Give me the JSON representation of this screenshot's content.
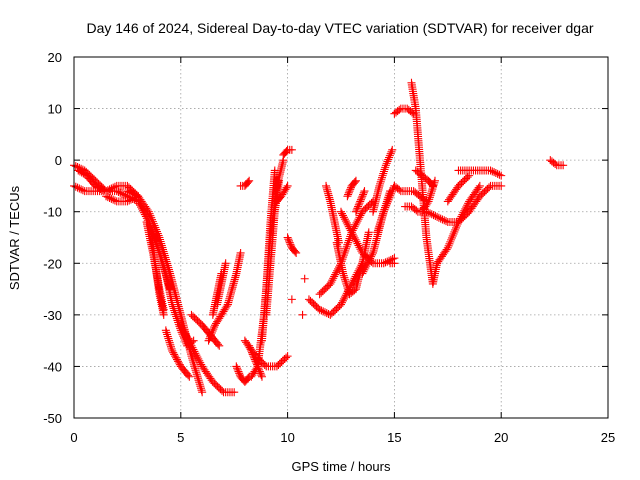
{
  "chart_data": {
    "type": "scatter",
    "title": "Day 146 of 2024, Sidereal Day-to-day VTEC variation (SDTVAR) for receiver dgar",
    "xlabel": "GPS time / hours",
    "ylabel": "SDTVAR / TECUs",
    "xlim": [
      0,
      25
    ],
    "ylim": [
      -50,
      20
    ],
    "xticks": [
      0,
      5,
      10,
      15,
      20,
      25
    ],
    "yticks": [
      -50,
      -40,
      -30,
      -20,
      -10,
      0,
      10,
      20
    ],
    "grid": true,
    "marker": "+",
    "color": "#ff0000",
    "series": [
      {
        "x": [
          0.0,
          0.5,
          1.0,
          1.5,
          2.0,
          2.5,
          3.0
        ],
        "y": [
          -1,
          -2,
          -4,
          -6,
          -6,
          -7,
          -8
        ]
      },
      {
        "x": [
          0.0,
          0.5,
          1.0,
          1.5,
          2.0,
          2.5,
          3.0
        ],
        "y": [
          -5,
          -6,
          -6,
          -6,
          -5,
          -5,
          -7
        ]
      },
      {
        "x": [
          0.2,
          0.6,
          1.0,
          1.4
        ],
        "y": [
          -2,
          -3,
          -5,
          -6
        ]
      },
      {
        "x": [
          1.5,
          2.0,
          2.5,
          3.0
        ],
        "y": [
          -7,
          -8,
          -8,
          -7
        ]
      },
      {
        "x": [
          2.5,
          3.0,
          3.5,
          4.0,
          4.5,
          5.0,
          5.5,
          6.0
        ],
        "y": [
          -6,
          -7,
          -10,
          -15,
          -22,
          -30,
          -38,
          -45
        ]
      },
      {
        "x": [
          3.0,
          3.5,
          4.0,
          4.5
        ],
        "y": [
          -8,
          -12,
          -18,
          -25
        ]
      },
      {
        "x": [
          3.4,
          3.7,
          4.0,
          4.2
        ],
        "y": [
          -12,
          -18,
          -25,
          -29
        ]
      },
      {
        "x": [
          3.6,
          3.8,
          4.0,
          4.2
        ],
        "y": [
          -13,
          -20,
          -26,
          -30
        ]
      },
      {
        "x": [
          4.0,
          4.3,
          4.6,
          5.0,
          5.3,
          5.6
        ],
        "y": [
          -18,
          -22,
          -28,
          -33,
          -36,
          -35
        ]
      },
      {
        "x": [
          4.3,
          4.6,
          5.0,
          5.4
        ],
        "y": [
          -33,
          -37,
          -40,
          -42
        ]
      },
      {
        "x": [
          5.0,
          5.5,
          6.0,
          6.5,
          7.0,
          7.5
        ],
        "y": [
          -32,
          -36,
          -40,
          -43,
          -45,
          -45
        ]
      },
      {
        "x": [
          5.5,
          6.0,
          6.4,
          6.8
        ],
        "y": [
          -30,
          -32,
          -34,
          -36
        ]
      },
      {
        "x": [
          6.3,
          6.6,
          6.9,
          7.2
        ],
        "y": [
          -35,
          -32,
          -30,
          -28
        ]
      },
      {
        "x": [
          6.5,
          6.7,
          6.9
        ],
        "y": [
          -30,
          -26,
          -22
        ]
      },
      {
        "x": [
          6.7,
          6.9,
          7.1
        ],
        "y": [
          -28,
          -24,
          -20
        ]
      },
      {
        "x": [
          7.2,
          7.4,
          7.6,
          7.8
        ],
        "y": [
          -28,
          -25,
          -22,
          -18
        ]
      },
      {
        "x": [
          7.6,
          7.8,
          8.0,
          8.2
        ],
        "y": [
          -40,
          -42,
          -43,
          -42
        ]
      },
      {
        "x": [
          7.8,
          8.0,
          8.2
        ],
        "y": [
          -5,
          -5,
          -4
        ]
      },
      {
        "x": [
          8.0,
          8.5,
          9.0,
          9.5,
          10.0
        ],
        "y": [
          -35,
          -38,
          -40,
          -40,
          -38
        ]
      },
      {
        "x": [
          8.2,
          8.4,
          8.6,
          8.8
        ],
        "y": [
          -36,
          -38,
          -40,
          -42
        ]
      },
      {
        "x": [
          8.3,
          8.6,
          8.9,
          9.2,
          9.5,
          9.8
        ],
        "y": [
          -42,
          -40,
          -30,
          -15,
          -5,
          0
        ]
      },
      {
        "x": [
          8.8,
          9.0,
          9.2,
          9.4
        ],
        "y": [
          -35,
          -25,
          -12,
          -2
        ]
      },
      {
        "x": [
          9.0,
          9.2,
          9.4,
          9.6
        ],
        "y": [
          -30,
          -20,
          -10,
          -4
        ]
      },
      {
        "x": [
          9.5,
          9.7,
          10.0
        ],
        "y": [
          -8,
          -7,
          -5
        ]
      },
      {
        "x": [
          9.8,
          10.0,
          10.2
        ],
        "y": [
          1,
          2,
          2
        ]
      },
      {
        "x": [
          10.0,
          10.2,
          10.4
        ],
        "y": [
          -15,
          -17,
          -18
        ]
      },
      {
        "x": [
          10.2
        ],
        "y": [
          -27
        ]
      },
      {
        "x": [
          10.8
        ],
        "y": [
          -23
        ]
      },
      {
        "x": [
          10.7
        ],
        "y": [
          -30
        ]
      },
      {
        "x": [
          11.0,
          11.5,
          12.0,
          12.5,
          13.0,
          13.5
        ],
        "y": [
          -27,
          -29,
          -30,
          -28,
          -24,
          -20
        ]
      },
      {
        "x": [
          11.5,
          12.0,
          12.5,
          13.0,
          13.5,
          14.0
        ],
        "y": [
          -26,
          -24,
          -20,
          -14,
          -10,
          -8
        ]
      },
      {
        "x": [
          11.8,
          12.0,
          12.2,
          12.4
        ],
        "y": [
          -5,
          -8,
          -12,
          -16
        ]
      },
      {
        "x": [
          12.3,
          12.6,
          12.9,
          13.2,
          13.5,
          13.8
        ],
        "y": [
          -16,
          -22,
          -26,
          -25,
          -20,
          -14
        ]
      },
      {
        "x": [
          12.5,
          13.0,
          13.5,
          14.0,
          14.5,
          15.0
        ],
        "y": [
          -10,
          -14,
          -18,
          -20,
          -20,
          -19
        ]
      },
      {
        "x": [
          12.8,
          13.0,
          13.2
        ],
        "y": [
          -7,
          -5,
          -4
        ]
      },
      {
        "x": [
          13.2,
          13.4,
          13.6
        ],
        "y": [
          -10,
          -8,
          -6
        ]
      },
      {
        "x": [
          13.5,
          14.0,
          14.5,
          15.0
        ],
        "y": [
          -22,
          -18,
          -10,
          -5
        ]
      },
      {
        "x": [
          14.0,
          14.3,
          14.6,
          14.9
        ],
        "y": [
          -10,
          -5,
          -1,
          2
        ]
      },
      {
        "x": [
          14.2,
          14.5,
          14.8
        ],
        "y": [
          -14,
          -10,
          -6
        ]
      },
      {
        "x": [
          14.8,
          15.0
        ],
        "y": [
          -20,
          -20
        ]
      },
      {
        "x": [
          15.0,
          15.3,
          15.6,
          15.9,
          16.2,
          16.5
        ],
        "y": [
          -5,
          -6,
          -6,
          -6,
          -7,
          -8
        ]
      },
      {
        "x": [
          15.0,
          15.3,
          15.6,
          15.9
        ],
        "y": [
          9,
          10,
          10,
          9
        ]
      },
      {
        "x": [
          15.8,
          16.0,
          16.2,
          16.5,
          16.8,
          17.0
        ],
        "y": [
          15,
          10,
          0,
          -15,
          -24,
          -20
        ]
      },
      {
        "x": [
          16.0,
          16.3,
          16.6,
          16.8
        ],
        "y": [
          -2,
          -3,
          -4,
          -5
        ]
      },
      {
        "x": [
          16.3,
          16.6,
          16.9
        ],
        "y": [
          -10,
          -8,
          -4
        ]
      },
      {
        "x": [
          15.5,
          15.8,
          16.1,
          16.4
        ],
        "y": [
          -9,
          -9,
          -10,
          -10
        ]
      },
      {
        "x": [
          16.5,
          17.0,
          17.5,
          18.0,
          18.5,
          19.0,
          19.5,
          20.0
        ],
        "y": [
          -10,
          -11,
          -12,
          -12,
          -10,
          -7,
          -5,
          -5
        ]
      },
      {
        "x": [
          17.0,
          17.5,
          18.0,
          18.5,
          19.0
        ],
        "y": [
          -20,
          -17,
          -12,
          -8,
          -5
        ]
      },
      {
        "x": [
          17.5,
          18.0,
          18.5
        ],
        "y": [
          -8,
          -5,
          -3
        ]
      },
      {
        "x": [
          18.0,
          18.5,
          19.0,
          19.5,
          20.0
        ],
        "y": [
          -2,
          -2,
          -2,
          -2,
          -3
        ]
      },
      {
        "x": [
          22.3,
          22.6,
          22.9
        ],
        "y": [
          0,
          -1,
          -1
        ]
      }
    ]
  }
}
